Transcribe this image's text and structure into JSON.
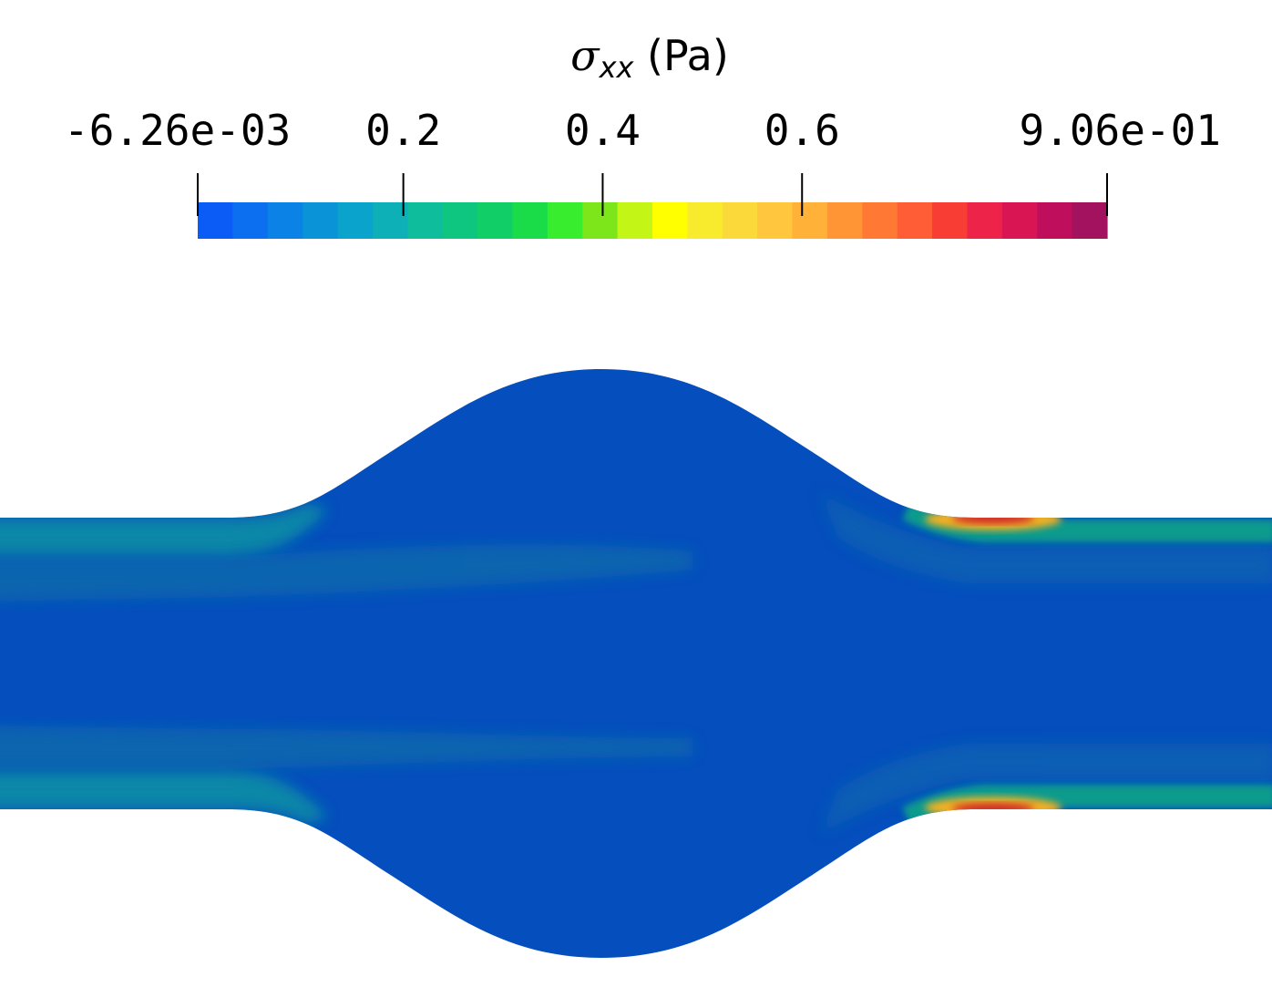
{
  "colorbar": {
    "title_symbol": "σ",
    "title_subscript": "xx",
    "title_unit": " (Pa)",
    "tick_labels": [
      "-6.26e-03",
      "0.2",
      "0.4",
      "0.6",
      "9.06e-01"
    ],
    "range": [
      -0.00626,
      0.906
    ],
    "ticks": [
      -0.00626,
      0.2,
      0.4,
      0.6,
      0.906
    ],
    "colors": [
      "#0b5cf7",
      "#0b6ff0",
      "#0a82e6",
      "#0b93d8",
      "#0aa3cc",
      "#0cb0b6",
      "#0dbd9c",
      "#0fc680",
      "#11cf66",
      "#19dc48",
      "#38ec2e",
      "#7de61b",
      "#c3f516",
      "#ffff00",
      "#f8ea2c",
      "#fcd93b",
      "#ffc63e",
      "#ffb138",
      "#ff9535",
      "#ff7935",
      "#ff5d35",
      "#f83d35",
      "#ee234a",
      "#d91554",
      "#bf0e5c",
      "#a3125f"
    ]
  },
  "field": {
    "base_color": "#044ebd",
    "wall_color": "#11a08a",
    "hotspot_color": "#d02c2c"
  }
}
